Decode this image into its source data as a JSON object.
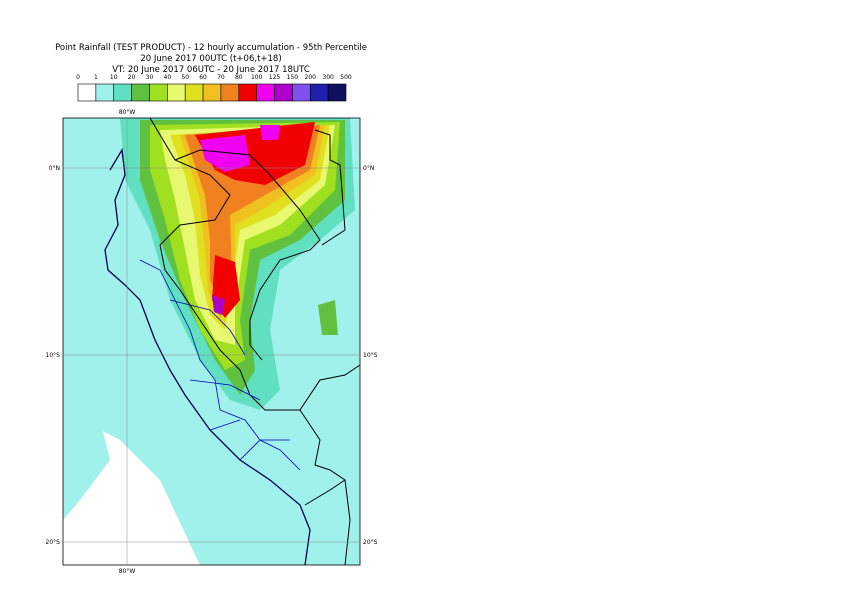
{
  "header": {
    "title": [
      "Point Rainfall (TEST PRODUCT) - 12 hourly accumulation - 95th Percentile",
      "20 June 2017 00UTC (t+06,t+18)",
      "VT: 20 June 2017 06UTC - 20 June 2017 18UTC"
    ]
  },
  "legend": {
    "bounds": [
      0,
      1,
      10,
      20,
      30,
      40,
      50,
      60,
      70,
      80,
      100,
      125,
      150,
      200,
      300,
      500
    ],
    "colors": [
      "#ffffff",
      "#a0f0ec",
      "#60e0c0",
      "#60c040",
      "#a0e020",
      "#e8f870",
      "#e0e020",
      "#f0c020",
      "#f08020",
      "#f00000",
      "#f000f0",
      "#b000d0",
      "#8050f0",
      "#2020b0",
      "#101060"
    ]
  },
  "map": {
    "lon_label": "80°W",
    "lat_labels": [
      "0°N",
      "10°S",
      "20°S"
    ]
  }
}
